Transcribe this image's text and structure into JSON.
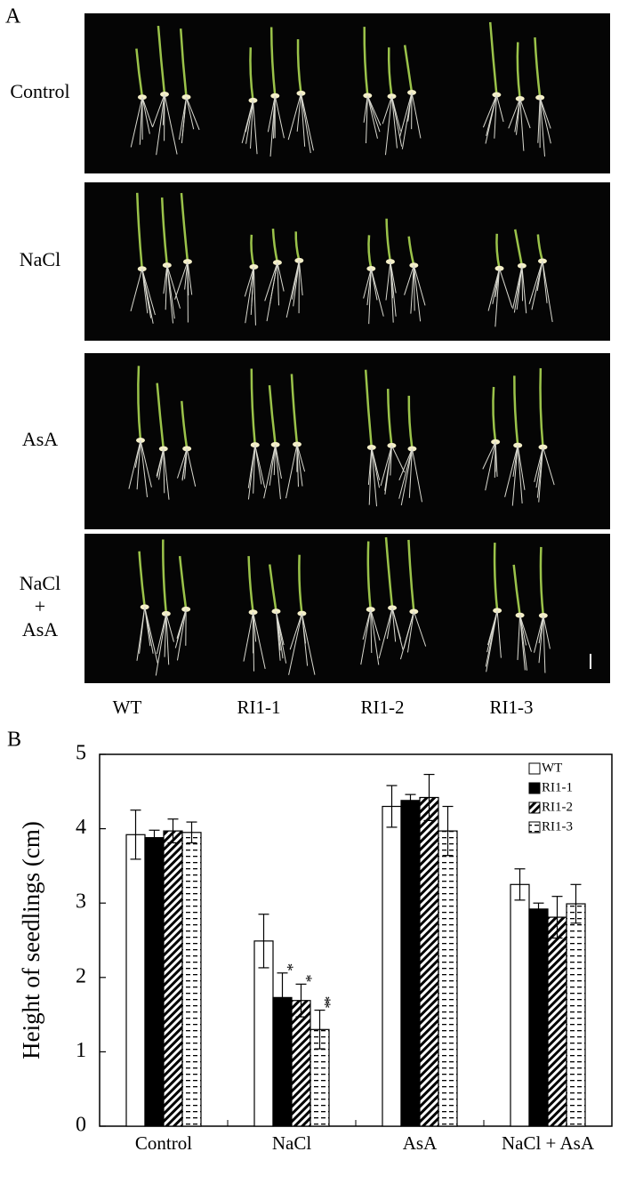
{
  "panel_a": {
    "label": "A",
    "rows": [
      {
        "lines": [
          "Control"
        ]
      },
      {
        "lines": [
          "NaCl"
        ]
      },
      {
        "lines": [
          "AsA"
        ]
      },
      {
        "lines": [
          "NaCl",
          "+",
          "AsA"
        ]
      }
    ],
    "columns": [
      "WT",
      "RI1-1",
      "RI1-2",
      "RI1-3"
    ]
  },
  "panel_b_label": "B",
  "chart_data": {
    "type": "bar",
    "y_label": "Height of seedlings (cm)",
    "categories": [
      "Control",
      "NaCl",
      "AsA",
      "NaCl + AsA"
    ],
    "series": [
      {
        "name": "WT",
        "color": "#ffffff",
        "pattern": "none",
        "values": [
          3.92,
          2.49,
          4.3,
          3.25
        ],
        "errors": [
          0.33,
          0.36,
          0.28,
          0.21
        ],
        "value_labels": [
          null,
          null,
          null,
          null
        ]
      },
      {
        "name": "RI1-1",
        "color": "#000000",
        "pattern": "solid",
        "values": [
          3.88,
          1.73,
          4.38,
          2.92
        ],
        "errors": [
          0.1,
          0.33,
          0.08,
          0.08
        ],
        "value_labels": [
          null,
          "*",
          null,
          null
        ]
      },
      {
        "name": "RI1-2",
        "color": "#000000",
        "pattern": "hatch",
        "values": [
          3.97,
          1.69,
          4.42,
          2.81
        ],
        "errors": [
          0.16,
          0.22,
          0.31,
          0.28
        ],
        "value_labels": [
          null,
          "*",
          null,
          null
        ]
      },
      {
        "name": "RI1-3",
        "color": "#000000",
        "pattern": "dash",
        "values": [
          3.95,
          1.3,
          3.97,
          2.99
        ],
        "errors": [
          0.14,
          0.26,
          0.33,
          0.26
        ],
        "value_labels": [
          null,
          "**",
          null,
          null
        ]
      }
    ],
    "ylim": [
      0,
      5
    ],
    "yticks": [
      0,
      1,
      2,
      3,
      4,
      5
    ],
    "grid": false,
    "legend": "top-right"
  }
}
